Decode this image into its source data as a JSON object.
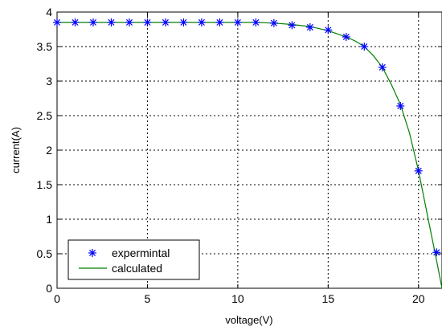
{
  "chart_data": {
    "type": "line",
    "title": "",
    "xlabel": "voltage(V)",
    "ylabel": "current(A)",
    "xlim": [
      0,
      21.3
    ],
    "ylim": [
      0,
      4
    ],
    "grid": true,
    "x_ticks": [
      0,
      5,
      10,
      15,
      20
    ],
    "x_tick_labels": [
      "0",
      "5",
      "10",
      "15",
      "20"
    ],
    "y_ticks": [
      0,
      0.5,
      1,
      1.5,
      2,
      2.5,
      3,
      3.5,
      4
    ],
    "y_tick_labels": [
      "0",
      "0.5",
      "1",
      "1.5",
      "2",
      "2.5",
      "3",
      "3.5",
      "4"
    ],
    "legend_position": "bottom-left",
    "series": [
      {
        "name": "expermintal",
        "type": "scatter",
        "marker": "asterisk",
        "color": "#0000ff",
        "points": [
          [
            0,
            3.85
          ],
          [
            1,
            3.85
          ],
          [
            2,
            3.85
          ],
          [
            3,
            3.85
          ],
          [
            4,
            3.85
          ],
          [
            5,
            3.85
          ],
          [
            6,
            3.85
          ],
          [
            7,
            3.85
          ],
          [
            8,
            3.85
          ],
          [
            9,
            3.85
          ],
          [
            10,
            3.85
          ],
          [
            11,
            3.85
          ],
          [
            12,
            3.84
          ],
          [
            13,
            3.81
          ],
          [
            14,
            3.78
          ],
          [
            15,
            3.74
          ],
          [
            16,
            3.64
          ],
          [
            17,
            3.5
          ],
          [
            18,
            3.2
          ],
          [
            19,
            2.64
          ],
          [
            20,
            1.7
          ],
          [
            21,
            0.52
          ]
        ]
      },
      {
        "name": "calculated",
        "type": "line",
        "color": "#008000",
        "points": [
          [
            0,
            3.85
          ],
          [
            2,
            3.85
          ],
          [
            4,
            3.85
          ],
          [
            6,
            3.85
          ],
          [
            8,
            3.85
          ],
          [
            10,
            3.85
          ],
          [
            11,
            3.85
          ],
          [
            12,
            3.84
          ],
          [
            13,
            3.82
          ],
          [
            14,
            3.79
          ],
          [
            15,
            3.73
          ],
          [
            16,
            3.64
          ],
          [
            16.5,
            3.58
          ],
          [
            17,
            3.5
          ],
          [
            17.5,
            3.37
          ],
          [
            18,
            3.2
          ],
          [
            18.5,
            2.95
          ],
          [
            19,
            2.66
          ],
          [
            19.5,
            2.25
          ],
          [
            20,
            1.7
          ],
          [
            20.5,
            1.05
          ],
          [
            21,
            0.4
          ],
          [
            21.3,
            0
          ]
        ]
      }
    ]
  }
}
